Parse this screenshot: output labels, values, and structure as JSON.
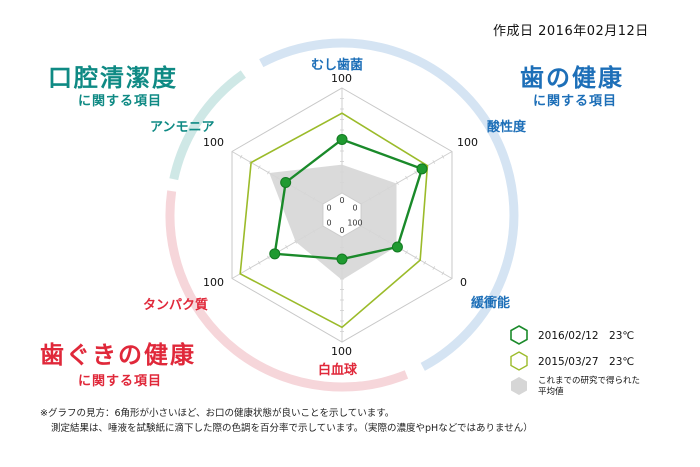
{
  "header": {
    "date": "作成日 2016年02月12日"
  },
  "groups": {
    "oral": {
      "title": "口腔清潔度",
      "subtitle": "に関する項目",
      "color": "#0f8a84"
    },
    "teeth": {
      "title": "歯の健康",
      "subtitle": "に関する項目",
      "color": "#1d6fb8"
    },
    "gum": {
      "title": "歯ぐきの健康",
      "subtitle": "に関する項目",
      "color": "#e0283a"
    }
  },
  "axes": [
    {
      "label": "むし歯菌",
      "max_tick": "100",
      "group": "teeth"
    },
    {
      "label": "酸性度",
      "max_tick": "100",
      "group": "teeth"
    },
    {
      "label": "緩衝能",
      "max_tick": "0",
      "group": "teeth"
    },
    {
      "label": "白血球",
      "max_tick": "100",
      "group": "gum"
    },
    {
      "label": "タンパク質",
      "max_tick": "100",
      "group": "gum"
    },
    {
      "label": "アンモニア",
      "max_tick": "100",
      "group": "oral"
    }
  ],
  "center_ticks": {
    "zero": "0",
    "hundred": "100"
  },
  "legend": [
    {
      "label": "2016/02/12　23℃",
      "color": "#1a8a2a",
      "type": "outline"
    },
    {
      "label": "2015/03/27　23℃",
      "color": "#9bbb2a",
      "type": "outline"
    },
    {
      "label": "これまでの研究で得られた\n平均値",
      "line1": "これまでの研究で得られた",
      "line2": "平均値",
      "color": "#d6d6d6",
      "type": "fill"
    }
  ],
  "notes": {
    "line1": "※グラフの見方：6角形が小さいほど、お口の健康状態が良いことを示しています。",
    "line2": "測定結果は、唾液を試験紙に滴下した際の色調を百分率で示しています。（実際の濃度やpHなどではありません）"
  },
  "chart_data": {
    "type": "radar",
    "title": "",
    "categories": [
      "むし歯菌",
      "酸性度",
      "緩衝能",
      "白血球",
      "タンパク質",
      "アンモニア"
    ],
    "range": [
      0,
      100
    ],
    "note": "緩衝能 axis is reversed (0 at outer edge); center hole represents 0 (100 for 緩衝能)",
    "series": [
      {
        "name": "2016/02/12 23℃",
        "values": [
          51,
          67,
          40,
          21,
          53,
          41
        ],
        "color": "#1a8a2a",
        "markers": true
      },
      {
        "name": "2015/03/27 23℃",
        "values": [
          76,
          73,
          65,
          86,
          91,
          79
        ],
        "color": "#9bbb2a",
        "markers": false
      },
      {
        "name": "これまでの研究で得られた平均値",
        "values": [
          27,
          39,
          39,
          41,
          30,
          59
        ],
        "color": "#d6d6d6",
        "fill": true
      }
    ]
  }
}
